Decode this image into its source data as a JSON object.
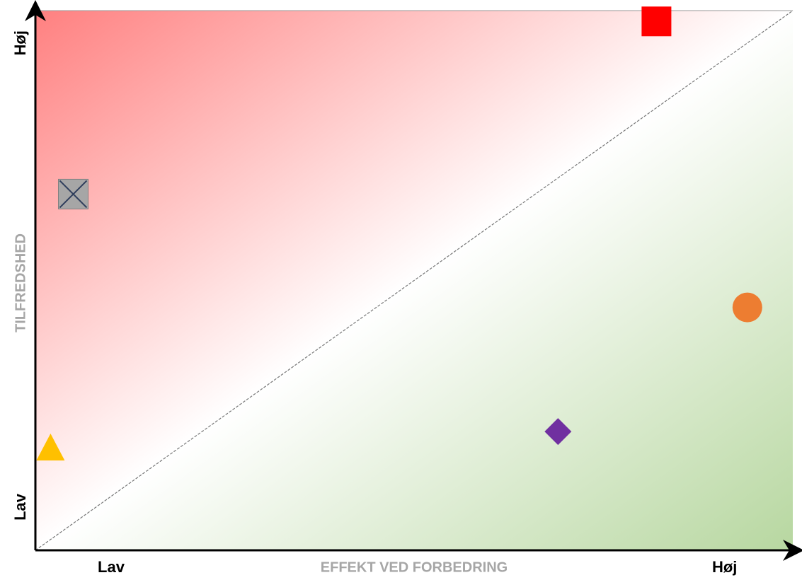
{
  "chart_data": {
    "type": "scatter",
    "x_label": "EFFEKT VED FORBEDRING",
    "y_label": "TILFREDSHED",
    "xlim": [
      0,
      100
    ],
    "ylim": [
      0,
      100
    ],
    "xticks": [
      {
        "value": 10,
        "label": "Lav"
      },
      {
        "value": 91,
        "label": "Høj"
      }
    ],
    "yticks": [
      {
        "value": 8,
        "label": "Lav"
      },
      {
        "value": 94,
        "label": "Høj"
      }
    ],
    "series": [
      {
        "marker": "square",
        "color": "#ff0000",
        "x": [
          82
        ],
        "values": [
          98
        ]
      },
      {
        "marker": "crossbox",
        "color": "#a6a6a6",
        "x": [
          5
        ],
        "values": [
          66
        ]
      },
      {
        "marker": "circle",
        "color": "#ed7d31",
        "x": [
          94
        ],
        "values": [
          45
        ]
      },
      {
        "marker": "diamond",
        "color": "#7030a0",
        "x": [
          69
        ],
        "values": [
          22
        ]
      },
      {
        "marker": "triangle",
        "color": "#ffc000",
        "x": [
          2
        ],
        "values": [
          19
        ]
      }
    ]
  }
}
